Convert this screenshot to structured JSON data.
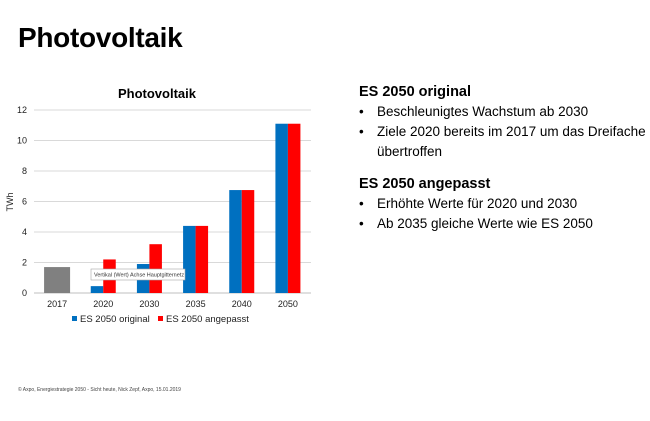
{
  "page": {
    "title": "Photovoltaik",
    "footer": "© Axpo, Energiestrategie 2050 - Sicht heute, Nick Zepf, Axpo, 15.01.2019"
  },
  "right_panel": {
    "sections": [
      {
        "heading": "ES 2050 original",
        "bullets": [
          "Beschleunigtes Wachstum ab 2030",
          "Ziele 2020 bereits im 2017 um das Dreifache übertroffen"
        ]
      },
      {
        "heading": "ES 2050 angepasst",
        "bullets": [
          "Erhöhte Werte für 2020 und 2030",
          "Ab 2035 gleiche Werte wie ES 2050"
        ]
      }
    ]
  },
  "chart_data": {
    "type": "bar",
    "title": "Photovoltaik",
    "ylabel": "TWh",
    "xlabel": "",
    "categories": [
      "2017",
      "2020",
      "2030",
      "2035",
      "2040",
      "2050"
    ],
    "ylim": [
      0,
      12
    ],
    "yticks": [
      0,
      2,
      4,
      6,
      8,
      10,
      12
    ],
    "grid": true,
    "legend_position": "bottom",
    "actual": {
      "category": "2017",
      "value": 1.7,
      "color": "#808080"
    },
    "series": [
      {
        "name": "ES 2050 original",
        "color": "#0070C0",
        "values": [
          null,
          0.45,
          1.9,
          4.4,
          6.75,
          11.1
        ]
      },
      {
        "name": "ES 2050 angepasst",
        "color": "#FF0000",
        "values": [
          null,
          2.2,
          3.2,
          4.4,
          6.75,
          11.1
        ]
      }
    ],
    "tooltip": "Vertikal (Wert) Achse Hauptgitternetz"
  }
}
